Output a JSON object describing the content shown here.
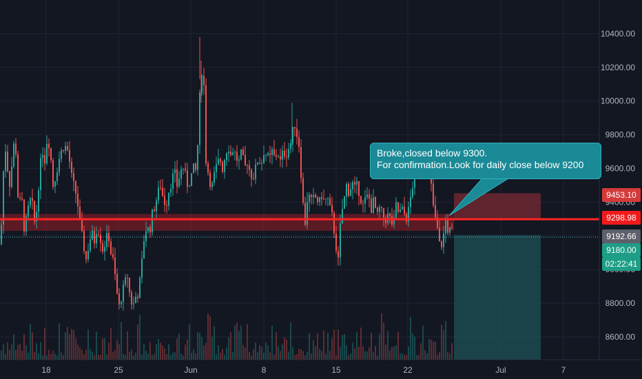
{
  "chart_data": {
    "type": "candlestick",
    "title": "",
    "xlabel": "",
    "ylabel": "",
    "ylim": [
      8470,
      10580
    ],
    "grid": true,
    "x_ticks": [
      "18",
      "25",
      "Jun",
      "8",
      "15",
      "22",
      "Jul",
      "7"
    ],
    "y_ticks": [
      "8600.00",
      "8800.00",
      "9000.00",
      "9200.00",
      "9400.00",
      "9600.00",
      "9800.00",
      "10000.00",
      "10200.00",
      "10400.00"
    ],
    "series": [
      {
        "kind": "price",
        "points": [
          [
            0,
            9150
          ],
          [
            3,
            9500
          ],
          [
            6,
            9750
          ],
          [
            10,
            9600
          ],
          [
            14,
            9480
          ],
          [
            18,
            9750
          ],
          [
            22,
            9700
          ],
          [
            26,
            9350
          ],
          [
            30,
            9450
          ],
          [
            34,
            9250
          ],
          [
            38,
            9300
          ],
          [
            42,
            9420
          ],
          [
            46,
            9380
          ],
          [
            50,
            9250
          ],
          [
            55,
            9500
          ],
          [
            60,
            9720
          ],
          [
            64,
            9650
          ],
          [
            68,
            9800
          ],
          [
            72,
            9700
          ],
          [
            76,
            9500
          ],
          [
            80,
            9560
          ],
          [
            86,
            9680
          ],
          [
            92,
            9740
          ],
          [
            98,
            9700
          ],
          [
            104,
            9520
          ],
          [
            108,
            9480
          ],
          [
            112,
            9380
          ],
          [
            116,
            9250
          ],
          [
            120,
            9150
          ],
          [
            124,
            9060
          ],
          [
            128,
            9150
          ],
          [
            132,
            9220
          ],
          [
            136,
            9170
          ],
          [
            140,
            9260
          ],
          [
            144,
            9200
          ],
          [
            148,
            9120
          ],
          [
            152,
            9160
          ],
          [
            156,
            9220
          ],
          [
            160,
            9100
          ],
          [
            164,
            9040
          ],
          [
            168,
            8880
          ],
          [
            172,
            8780
          ],
          [
            176,
            8850
          ],
          [
            180,
            8920
          ],
          [
            184,
            8960
          ],
          [
            188,
            8830
          ],
          [
            192,
            8780
          ],
          [
            196,
            8840
          ],
          [
            200,
            8860
          ],
          [
            204,
            9000
          ],
          [
            208,
            9180
          ],
          [
            212,
            9260
          ],
          [
            216,
            9220
          ],
          [
            220,
            9330
          ],
          [
            224,
            9380
          ],
          [
            228,
            9450
          ],
          [
            232,
            9500
          ],
          [
            236,
            9420
          ],
          [
            240,
            9380
          ],
          [
            244,
            9470
          ],
          [
            248,
            9520
          ],
          [
            252,
            9590
          ],
          [
            256,
            9500
          ],
          [
            260,
            9560
          ],
          [
            264,
            9620
          ],
          [
            268,
            9560
          ],
          [
            272,
            9490
          ],
          [
            276,
            9550
          ],
          [
            280,
            9600
          ],
          [
            284,
            9580
          ],
          [
            288,
            9900
          ],
          [
            290,
            10150
          ],
          [
            292,
            10180
          ],
          [
            295,
            10090
          ],
          [
            298,
            9650
          ],
          [
            302,
            9560
          ],
          [
            306,
            9480
          ],
          [
            310,
            9560
          ],
          [
            314,
            9620
          ],
          [
            318,
            9660
          ],
          [
            322,
            9600
          ],
          [
            326,
            9680
          ],
          [
            330,
            9740
          ],
          [
            334,
            9680
          ],
          [
            338,
            9720
          ],
          [
            342,
            9660
          ],
          [
            346,
            9640
          ],
          [
            350,
            9700
          ],
          [
            354,
            9600
          ],
          [
            358,
            9640
          ],
          [
            362,
            9580
          ],
          [
            366,
            9540
          ],
          [
            370,
            9600
          ],
          [
            374,
            9660
          ],
          [
            378,
            9620
          ],
          [
            382,
            9700
          ],
          [
            386,
            9680
          ],
          [
            390,
            9650
          ],
          [
            394,
            9700
          ],
          [
            398,
            9660
          ],
          [
            402,
            9700
          ],
          [
            406,
            9640
          ],
          [
            410,
            9700
          ],
          [
            414,
            9680
          ],
          [
            418,
            9720
          ],
          [
            422,
            9760
          ],
          [
            426,
            9880
          ],
          [
            430,
            9800
          ],
          [
            434,
            9720
          ],
          [
            438,
            9420
          ],
          [
            442,
            9280
          ],
          [
            446,
            9460
          ],
          [
            450,
            9400
          ],
          [
            454,
            9420
          ],
          [
            458,
            9430
          ],
          [
            462,
            9390
          ],
          [
            466,
            9440
          ],
          [
            470,
            9400
          ],
          [
            474,
            9430
          ],
          [
            478,
            9360
          ],
          [
            482,
            9300
          ],
          [
            486,
            9160
          ],
          [
            490,
            9050
          ],
          [
            494,
            9320
          ],
          [
            498,
            9400
          ],
          [
            502,
            9500
          ],
          [
            506,
            9450
          ],
          [
            510,
            9520
          ],
          [
            514,
            9480
          ],
          [
            518,
            9500
          ],
          [
            522,
            9430
          ],
          [
            526,
            9380
          ],
          [
            530,
            9420
          ],
          [
            534,
            9440
          ],
          [
            538,
            9360
          ],
          [
            542,
            9420
          ],
          [
            546,
            9300
          ],
          [
            550,
            9360
          ],
          [
            554,
            9330
          ],
          [
            558,
            9290
          ],
          [
            562,
            9320
          ],
          [
            566,
            9300
          ],
          [
            570,
            9250
          ],
          [
            574,
            9380
          ],
          [
            578,
            9330
          ],
          [
            582,
            9360
          ],
          [
            586,
            9330
          ],
          [
            590,
            9300
          ],
          [
            594,
            9400
          ],
          [
            598,
            9500
          ],
          [
            602,
            9620
          ],
          [
            606,
            9700
          ],
          [
            610,
            9640
          ],
          [
            614,
            9670
          ],
          [
            618,
            9600
          ],
          [
            622,
            9620
          ],
          [
            626,
            9450
          ],
          [
            630,
            9310
          ],
          [
            634,
            9240
          ],
          [
            638,
            9120
          ],
          [
            642,
            9180
          ],
          [
            646,
            9290
          ],
          [
            650,
            9220
          ],
          [
            654,
            9240
          ],
          [
            657,
            9180
          ]
        ]
      },
      {
        "kind": "volume",
        "description": "per-bar volume, mixed red/green"
      }
    ],
    "annotations": {
      "resistance": {
        "value": 9298.98,
        "band": [
          9230,
          9330
        ],
        "color": "#ff2525"
      },
      "short_position": {
        "entry": 9298.98,
        "target_zone": [
          8470,
          9205
        ],
        "stop_zone": [
          9298.98,
          9453.1
        ],
        "x_range": [
          "2020-06-26",
          "2020-07-05"
        ]
      },
      "dotted_last_line": 9192.66
    }
  },
  "price_tags": {
    "stop": "9453.10",
    "resistance": "9298.98",
    "last": "9192.66",
    "close": "9180.00",
    "countdown": "02:22:41"
  },
  "callout": {
    "line1": "Broke,closed below 9300.",
    "line2": "For confirmation.Look for daily close below 9200"
  },
  "colors": {
    "background": "#131722",
    "up": "#26a69a",
    "down": "#ef5350",
    "resistance": "#ff2525",
    "tag_stop": "#d43a3a",
    "tag_res": "#f21a1a",
    "tag_last": "#5d606b",
    "tag_close": "#1e9e86",
    "callout": "#1a8a96"
  }
}
